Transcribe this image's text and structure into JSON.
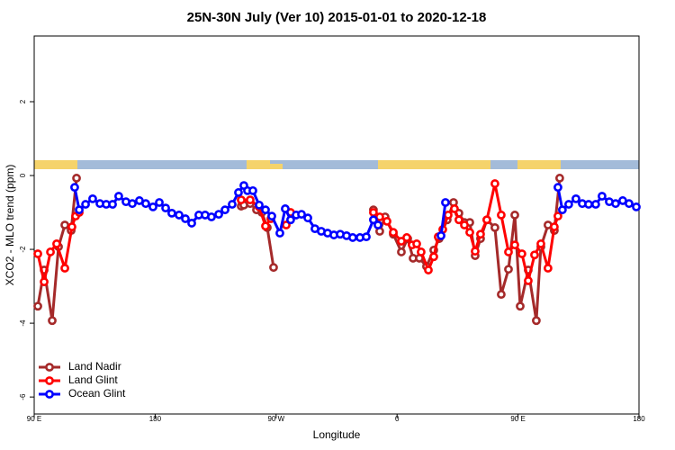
{
  "chart_data": {
    "type": "line",
    "title": "25N-30N July (Ver 10)   2015-01-01 to 2020-12-18",
    "x_label": "Longitude",
    "y_label": "XCO2 - MLO trend (ppm)",
    "xlim": [
      90,
      540
    ],
    "xticks": [
      {
        "value": 90,
        "label": "90 E"
      },
      {
        "value": 180,
        "label": "180"
      },
      {
        "value": 270,
        "label": "90 W"
      },
      {
        "value": 360,
        "label": "0"
      },
      {
        "value": 450,
        "label": "90 E"
      },
      {
        "value": 540,
        "label": "180"
      }
    ],
    "ylim": [
      -6.46,
      3.78
    ],
    "yticks": [
      -6,
      -4,
      -2,
      0,
      2
    ],
    "legend": "bottom-left",
    "series": [
      {
        "name": "Land Nadir",
        "color": "#a52a2a",
        "x": [
          92.7,
          97.4,
          103.4,
          108.1,
          112.8,
          117.5,
          121.5,
          null,
          244,
          246,
          250.7,
          255.4,
          259.4,
          263.4,
          268.1,
          null,
          342.4,
          347.1,
          351.1,
          357.2,
          363.2,
          367.9,
          371.9,
          376.6,
          381.9,
          387.3,
          391.3,
          397.3,
          402,
          406,
          410.1,
          414.1,
          418.1,
          422.1,
          426.8,
          432.8,
          437.5,
          442.9,
          447.6,
          451.6,
          457.6,
          463.6,
          467,
          472.3,
          477,
          481
        ],
        "values": [
          -3.54,
          -2.56,
          -3.93,
          -1.93,
          -1.34,
          -1.49,
          -0.07,
          null,
          -0.83,
          -0.8,
          -0.76,
          -0.93,
          -1.0,
          -1.41,
          -2.49,
          null,
          -0.93,
          -1.51,
          -1.12,
          -1.59,
          -2.07,
          -1.71,
          -2.24,
          -2.24,
          -2.46,
          -2.02,
          -1.71,
          -1.2,
          -0.73,
          -1.02,
          -1.27,
          -1.27,
          -2.17,
          -1.71,
          -1.2,
          -1.41,
          -3.22,
          -2.54,
          -1.07,
          -3.54,
          -2.56,
          -3.93,
          -1.93,
          -1.34,
          -1.49,
          -0.07
        ]
      },
      {
        "name": "Land Glint",
        "color": "#ff0000",
        "x": [
          92.7,
          97.4,
          102.1,
          106.7,
          112.8,
          118.1,
          120.8,
          123.5,
          null,
          244,
          250.7,
          257.4,
          262.1,
          266.1,
          null,
          277.5,
          280.8,
          null,
          342.4,
          347.1,
          352.5,
          357.2,
          363.2,
          367.2,
          371.2,
          374.6,
          377.9,
          383.3,
          387.3,
          390.6,
          394,
          398,
          402.7,
          406,
          410.1,
          414.1,
          418.1,
          422.1,
          426.8,
          432.8,
          437.5,
          442.9,
          447.6,
          452.9,
          457.6,
          462.3,
          467,
          472.3,
          477,
          479.7
        ],
        "values": [
          -2.12,
          -2.88,
          -2.07,
          -1.85,
          -2.51,
          -1.39,
          -1.1,
          -1.0,
          null,
          -0.66,
          -0.66,
          -0.85,
          -1.37,
          -1.17,
          null,
          -1.34,
          -1.0,
          null,
          -1.0,
          -1.12,
          -1.24,
          -1.54,
          -1.78,
          -1.68,
          -1.88,
          -1.85,
          -2.07,
          -2.56,
          -2.2,
          -1.66,
          -1.46,
          -1.07,
          -0.9,
          -1.2,
          -1.34,
          -1.54,
          -2.05,
          -1.59,
          -1.2,
          -0.22,
          -1.07,
          -2.07,
          -1.88,
          -2.12,
          -2.85,
          -2.15,
          -1.85,
          -2.51,
          -1.39,
          -1.1
        ]
      },
      {
        "name": "Ocean Glint",
        "color": "#0000ff",
        "x": [
          120.1,
          123.5,
          128.2,
          133.5,
          138.9,
          143.6,
          148.3,
          152.9,
          158.3,
          163,
          168.3,
          173,
          178.4,
          183.1,
          187.8,
          192.4,
          197.8,
          202.5,
          207.2,
          212.5,
          217.2,
          221.9,
          227.3,
          232,
          237.3,
          242,
          246,
          248.7,
          252.7,
          257.4,
          262.1,
          266.8,
          272.8,
          276.8,
          280.8,
          284.9,
          288.9,
          293.6,
          298.9,
          303.6,
          308.3,
          313,
          317.7,
          322.4,
          327,
          332.4,
          337.1,
          342.4,
          345.8,
          null,
          392.7,
          396,
          null,
          479.7,
          483,
          487.7,
          493.1,
          497.8,
          502.5,
          507.8,
          512.5,
          517.9,
          522.6,
          527.9,
          532.6,
          538
        ],
        "values": [
          -0.32,
          -0.93,
          -0.78,
          -0.63,
          -0.76,
          -0.78,
          -0.78,
          -0.56,
          -0.71,
          -0.76,
          -0.68,
          -0.76,
          -0.85,
          -0.73,
          -0.88,
          -1.02,
          -1.07,
          -1.17,
          -1.29,
          -1.07,
          -1.07,
          -1.12,
          -1.05,
          -0.93,
          -0.78,
          -0.46,
          -0.27,
          -0.41,
          -0.41,
          -0.8,
          -0.93,
          -1.1,
          -1.56,
          -0.9,
          -1.2,
          -1.07,
          -1.05,
          -1.15,
          -1.44,
          -1.51,
          -1.56,
          -1.61,
          -1.59,
          -1.63,
          -1.68,
          -1.68,
          -1.66,
          -1.2,
          -1.34,
          null,
          -1.63,
          -0.73,
          null,
          -0.32,
          -0.93,
          -0.78,
          -0.63,
          -0.76,
          -0.78,
          -0.78,
          -0.56,
          -0.71,
          -0.76,
          -0.68,
          -0.76,
          -0.85
        ]
      }
    ]
  }
}
